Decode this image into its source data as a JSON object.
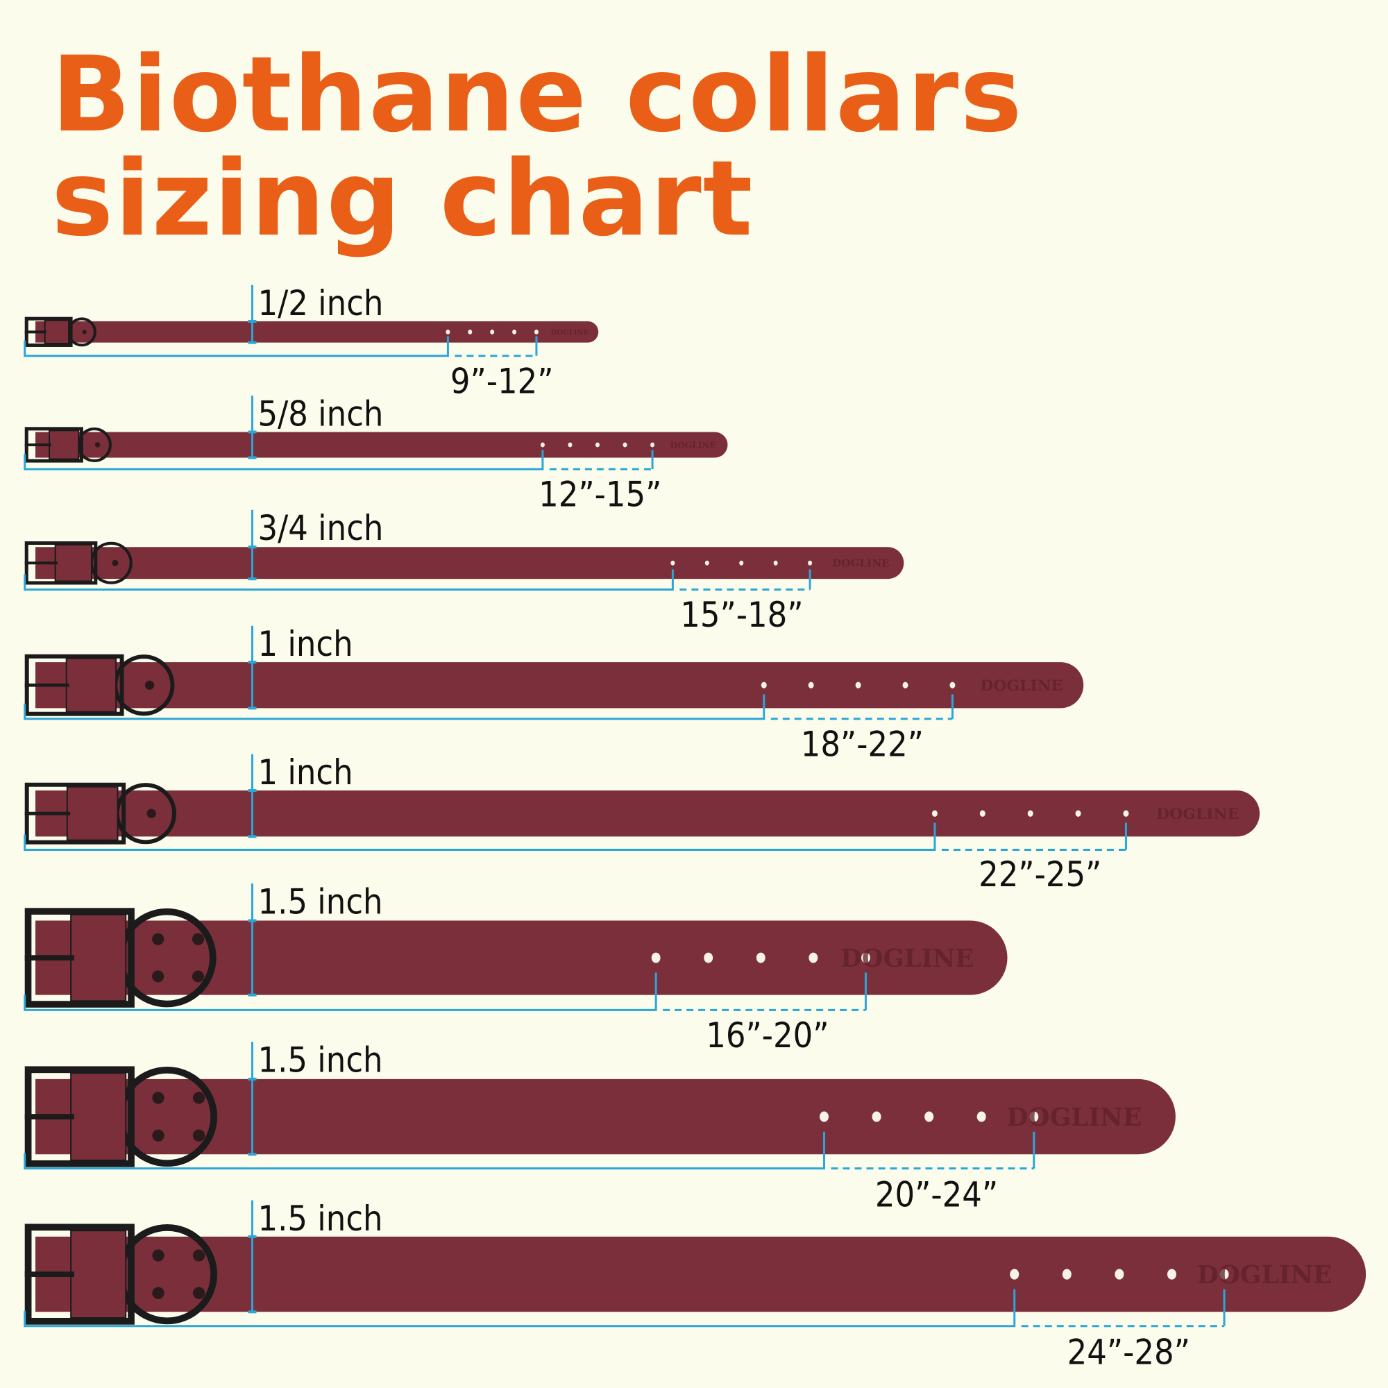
{
  "title": {
    "line1": "Biothane collars",
    "line2": "sizing chart"
  },
  "colors": {
    "title": "#ea5f17",
    "strap": "#7b2f3b",
    "hardware": "#1b1b1b",
    "measure": "#2aa6d8",
    "background": "#fbfcec"
  },
  "brand_embossing": "DOGLINE",
  "collars": [
    {
      "width": "1/2 inch",
      "size_range": "9”-12”"
    },
    {
      "width": "5/8 inch",
      "size_range": "12”-15”"
    },
    {
      "width": "3/4 inch",
      "size_range": "15”-18”"
    },
    {
      "width": "1 inch",
      "size_range": "18”-22”"
    },
    {
      "width": "1 inch",
      "size_range": "22”-25”"
    },
    {
      "width": "1.5 inch",
      "size_range": "16”-20”"
    },
    {
      "width": "1.5 inch",
      "size_range": "20”-24”"
    },
    {
      "width": "1.5 inch",
      "size_range": "24”-28”"
    }
  ]
}
